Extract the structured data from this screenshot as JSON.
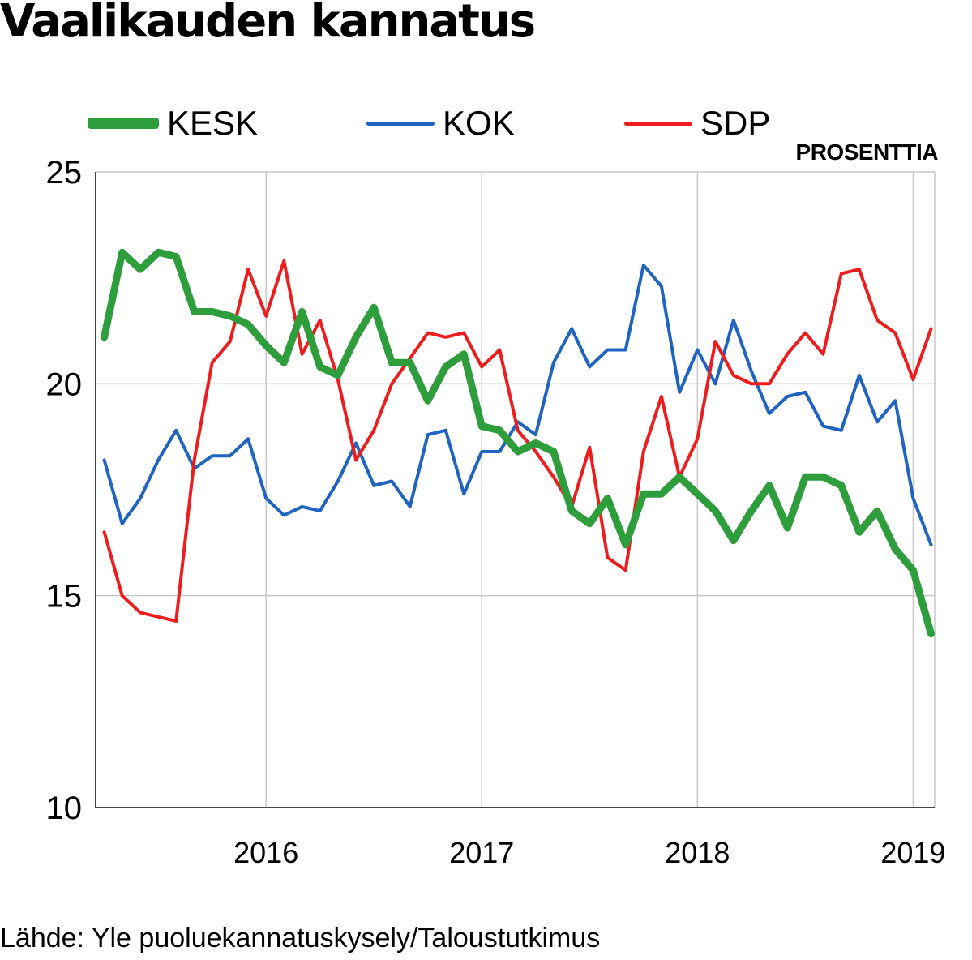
{
  "chart_data": {
    "type": "line",
    "title": "Vaalikauden kannatus",
    "unit_label": "PROSENTTIA",
    "source": "Lähde: Yle puoluekannatuskysely/Taloustutkimus",
    "ylim": [
      10,
      25
    ],
    "xlim": [
      2015.21,
      2019.1
    ],
    "y_ticks": [
      10,
      15,
      20,
      25
    ],
    "x_ticks": [
      {
        "value": 2016,
        "label": "2016"
      },
      {
        "value": 2017,
        "label": "2017"
      },
      {
        "value": 2018,
        "label": "2018"
      },
      {
        "value": 2019,
        "label": "2019"
      }
    ],
    "grid": true,
    "x": [
      2015.25,
      2015.333,
      2015.417,
      2015.5,
      2015.583,
      2015.667,
      2015.75,
      2015.833,
      2015.917,
      2016.0,
      2016.083,
      2016.167,
      2016.25,
      2016.333,
      2016.417,
      2016.5,
      2016.583,
      2016.667,
      2016.75,
      2016.833,
      2016.917,
      2017.0,
      2017.083,
      2017.167,
      2017.25,
      2017.333,
      2017.417,
      2017.5,
      2017.583,
      2017.667,
      2017.75,
      2017.833,
      2017.917,
      2018.0,
      2018.083,
      2018.167,
      2018.25,
      2018.333,
      2018.417,
      2018.5,
      2018.583,
      2018.667,
      2018.75,
      2018.833,
      2018.917,
      2019.0,
      2019.083
    ],
    "series": [
      {
        "name": "KESK",
        "color": "#2e9e3c",
        "width": 9,
        "values": [
          21.1,
          23.1,
          22.7,
          23.1,
          23.0,
          21.7,
          21.7,
          21.6,
          21.4,
          20.9,
          20.5,
          21.7,
          20.4,
          20.2,
          21.1,
          21.8,
          20.5,
          20.5,
          19.6,
          20.4,
          20.7,
          19.0,
          18.9,
          18.4,
          18.6,
          18.4,
          17.0,
          16.7,
          17.3,
          16.2,
          17.4,
          17.4,
          17.8,
          17.4,
          17.0,
          16.3,
          17.0,
          17.6,
          16.6,
          17.8,
          17.8,
          17.6,
          16.5,
          17.0,
          16.1,
          15.6,
          14.1
        ]
      },
      {
        "name": "KOK",
        "color": "#1f64c0",
        "width": 4,
        "values": [
          18.2,
          16.7,
          17.3,
          18.2,
          18.9,
          18.0,
          18.3,
          18.3,
          18.7,
          17.3,
          16.9,
          17.1,
          17.0,
          17.7,
          18.6,
          17.6,
          17.7,
          17.1,
          18.8,
          18.9,
          17.4,
          18.4,
          18.4,
          19.1,
          18.8,
          20.5,
          21.3,
          20.4,
          20.8,
          20.8,
          22.8,
          22.3,
          19.8,
          20.8,
          20.0,
          21.5,
          20.3,
          19.3,
          19.7,
          19.8,
          19.0,
          18.9,
          20.2,
          19.1,
          19.6,
          17.3,
          16.2
        ]
      },
      {
        "name": "SDP",
        "color": "#ee1c1c",
        "width": 4,
        "values": [
          16.5,
          15.0,
          14.6,
          14.5,
          14.4,
          18.2,
          20.5,
          21.0,
          22.7,
          21.6,
          22.9,
          20.7,
          21.5,
          20.1,
          18.2,
          18.9,
          20.0,
          20.6,
          21.2,
          21.1,
          21.2,
          20.4,
          20.8,
          18.9,
          18.4,
          17.8,
          17.1,
          18.5,
          15.9,
          15.6,
          18.4,
          19.7,
          17.8,
          18.7,
          21.0,
          20.2,
          20.0,
          20.0,
          20.7,
          21.2,
          20.7,
          22.6,
          22.7,
          21.5,
          21.2,
          20.1,
          21.3
        ]
      }
    ]
  }
}
